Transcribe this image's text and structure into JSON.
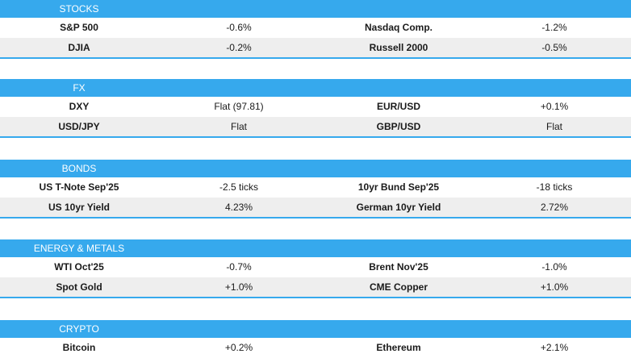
{
  "sections": [
    {
      "title": "STOCKS",
      "rows": [
        {
          "n1": "S&P 500",
          "v1": "-0.6%",
          "n2": "Nasdaq Comp.",
          "v2": "-1.2%"
        },
        {
          "n1": "DJIA",
          "v1": "-0.2%",
          "n2": "Russell 2000",
          "v2": "-0.5%"
        }
      ]
    },
    {
      "title": "FX",
      "rows": [
        {
          "n1": "DXY",
          "v1": "Flat (97.81)",
          "n2": "EUR/USD",
          "v2": "+0.1%"
        },
        {
          "n1": "USD/JPY",
          "v1": "Flat",
          "n2": "GBP/USD",
          "v2": "Flat"
        }
      ]
    },
    {
      "title": "BONDS",
      "rows": [
        {
          "n1": "US T-Note Sep'25",
          "v1": "-2.5 ticks",
          "n2": "10yr Bund Sep'25",
          "v2": "-18 ticks"
        },
        {
          "n1": "US 10yr Yield",
          "v1": "4.23%",
          "n2": "German 10yr Yield",
          "v2": "2.72%"
        }
      ]
    },
    {
      "title": "ENERGY & METALS",
      "rows": [
        {
          "n1": "WTI Oct'25",
          "v1": "-0.7%",
          "n2": "Brent Nov'25",
          "v2": "-1.0%"
        },
        {
          "n1": "Spot Gold",
          "v1": "+1.0%",
          "n2": "CME Copper",
          "v2": "+1.0%"
        }
      ]
    },
    {
      "title": "CRYPTO",
      "rows": [
        {
          "n1": "Bitcoin",
          "v1": "+0.2%",
          "n2": "Ethereum",
          "v2": "+2.1%"
        }
      ]
    }
  ],
  "colors": {
    "header": "#36a9ed",
    "alt_row": "#eeeeee"
  }
}
